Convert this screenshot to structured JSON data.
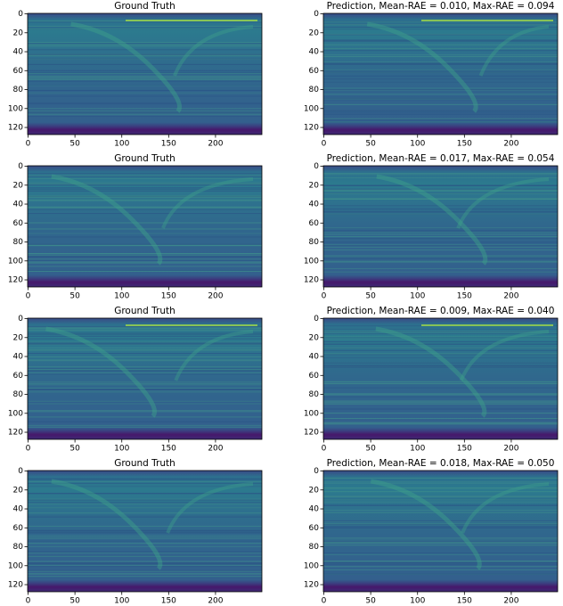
{
  "chart_data": [
    {
      "type": "heatmap",
      "title": "Ground Truth",
      "xlim": [
        -0.5,
        249.5
      ],
      "ylim": [
        127.5,
        -0.5
      ],
      "xticks": [
        0,
        50,
        100,
        150,
        200
      ],
      "yticks": [
        0,
        20,
        40,
        60,
        80,
        100,
        120
      ]
    },
    {
      "type": "heatmap",
      "title": "Prediction, Mean-RAE = 0.010, Max-RAE = 0.094",
      "xlim": [
        -0.5,
        249.5
      ],
      "ylim": [
        127.5,
        -0.5
      ],
      "xticks": [
        0,
        50,
        100,
        150,
        200
      ],
      "yticks": [
        0,
        20,
        40,
        60,
        80,
        100,
        120
      ]
    },
    {
      "type": "heatmap",
      "title": "Ground Truth",
      "xlim": [
        -0.5,
        249.5
      ],
      "ylim": [
        127.5,
        -0.5
      ],
      "xticks": [
        0,
        50,
        100,
        150,
        200
      ],
      "yticks": [
        0,
        20,
        40,
        60,
        80,
        100,
        120
      ]
    },
    {
      "type": "heatmap",
      "title": "Prediction, Mean-RAE = 0.017, Max-RAE = 0.054",
      "xlim": [
        -0.5,
        249.5
      ],
      "ylim": [
        127.5,
        -0.5
      ],
      "xticks": [
        0,
        50,
        100,
        150,
        200
      ],
      "yticks": [
        0,
        20,
        40,
        60,
        80,
        100,
        120
      ]
    },
    {
      "type": "heatmap",
      "title": "Ground Truth",
      "xlim": [
        -0.5,
        249.5
      ],
      "ylim": [
        127.5,
        -0.5
      ],
      "xticks": [
        0,
        50,
        100,
        150,
        200
      ],
      "yticks": [
        0,
        20,
        40,
        60,
        80,
        100,
        120
      ]
    },
    {
      "type": "heatmap",
      "title": "Prediction, Mean-RAE = 0.009, Max-RAE = 0.040",
      "xlim": [
        -0.5,
        249.5
      ],
      "ylim": [
        127.5,
        -0.5
      ],
      "xticks": [
        0,
        50,
        100,
        150,
        200
      ],
      "yticks": [
        0,
        20,
        40,
        60,
        80,
        100,
        120
      ]
    },
    {
      "type": "heatmap",
      "title": "Ground Truth",
      "xlim": [
        -0.5,
        249.5
      ],
      "ylim": [
        127.5,
        -0.5
      ],
      "xticks": [
        0,
        50,
        100,
        150,
        200
      ],
      "yticks": [
        0,
        20,
        40,
        60,
        80,
        100,
        120
      ]
    },
    {
      "type": "heatmap",
      "title": "Prediction, Mean-RAE = 0.018, Max-RAE = 0.050",
      "xlim": [
        -0.5,
        249.5
      ],
      "ylim": [
        127.5,
        -0.5
      ],
      "xticks": [
        0,
        50,
        100,
        150,
        200
      ],
      "yticks": [
        0,
        20,
        40,
        60,
        80,
        100,
        120
      ]
    }
  ]
}
